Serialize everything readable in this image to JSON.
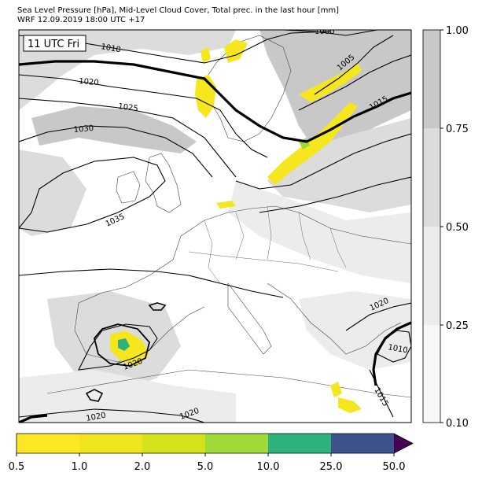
{
  "title_line1": "Sea Level Pressure [hPa], Mid-Level Cloud Cover, Total prec. in the last hour [mm]",
  "title_line2": "WRF 12.09.2019 18:00 UTC +17",
  "time_label": "11 UTC Fri",
  "isobar_labels": [
    "1000",
    "1010",
    "1005",
    "1020",
    "1025",
    "1015",
    "1030",
    "1035",
    "1020",
    "1010",
    "1020",
    "1015",
    "1020",
    "1020"
  ],
  "cloud_colorbar": {
    "ticks": [
      "1.00",
      "0.75",
      "0.50",
      "0.25",
      "0.10"
    ],
    "colors": [
      "#c8c8c8",
      "#dcdcdc",
      "#ececec",
      "#f7f7f7"
    ]
  },
  "precip_colorbar": {
    "ticks": [
      "0.5",
      "1.0",
      "2.0",
      "5.0",
      "10.0",
      "25.0",
      "50.0"
    ],
    "colors": [
      "#fde725",
      "#f0e41f",
      "#d3e21b",
      "#a0da39",
      "#2db27d",
      "#3b528b",
      "#440154"
    ]
  },
  "colors": {
    "frame": "#000000",
    "map_background": "#ffffff",
    "cloud_dark": "#c8c8c8",
    "cloud_mid": "#d9d9d9",
    "cloud_light": "#ececec",
    "precip": "#f5e61e",
    "coast": "#333333"
  }
}
